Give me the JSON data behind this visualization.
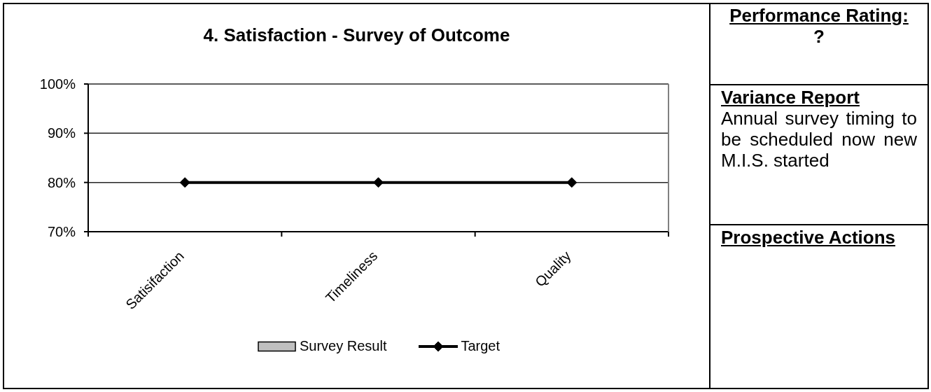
{
  "chart_data": [
    {
      "type": "line",
      "title": "4. Satisfaction - Survey of Outcome",
      "categories": [
        "Satisifaction",
        "Timeliness",
        "Quality"
      ],
      "series": [
        {
          "name": "Survey Result",
          "type": "bar",
          "color": "#c0c0c0",
          "values": [
            null,
            null,
            null
          ]
        },
        {
          "name": "Target",
          "type": "line",
          "color": "#000000",
          "values": [
            80,
            80,
            80
          ]
        }
      ],
      "marker": "diamond",
      "ylim": [
        70,
        100
      ],
      "yticks": [
        {
          "value": 70,
          "label": "70%"
        },
        {
          "value": 80,
          "label": "80%"
        },
        {
          "value": 90,
          "label": "90%"
        },
        {
          "value": 100,
          "label": "100%"
        }
      ],
      "grid": "y",
      "legend": "bottom"
    },
    {
      "type": "other",
      "title": "Performance Rating:",
      "subtitle": "?",
      "annotations": [
        "Variance Report",
        "Annual survey timing to be scheduled now new M.I.S. started",
        "Prospective Actions"
      ]
    }
  ]
}
